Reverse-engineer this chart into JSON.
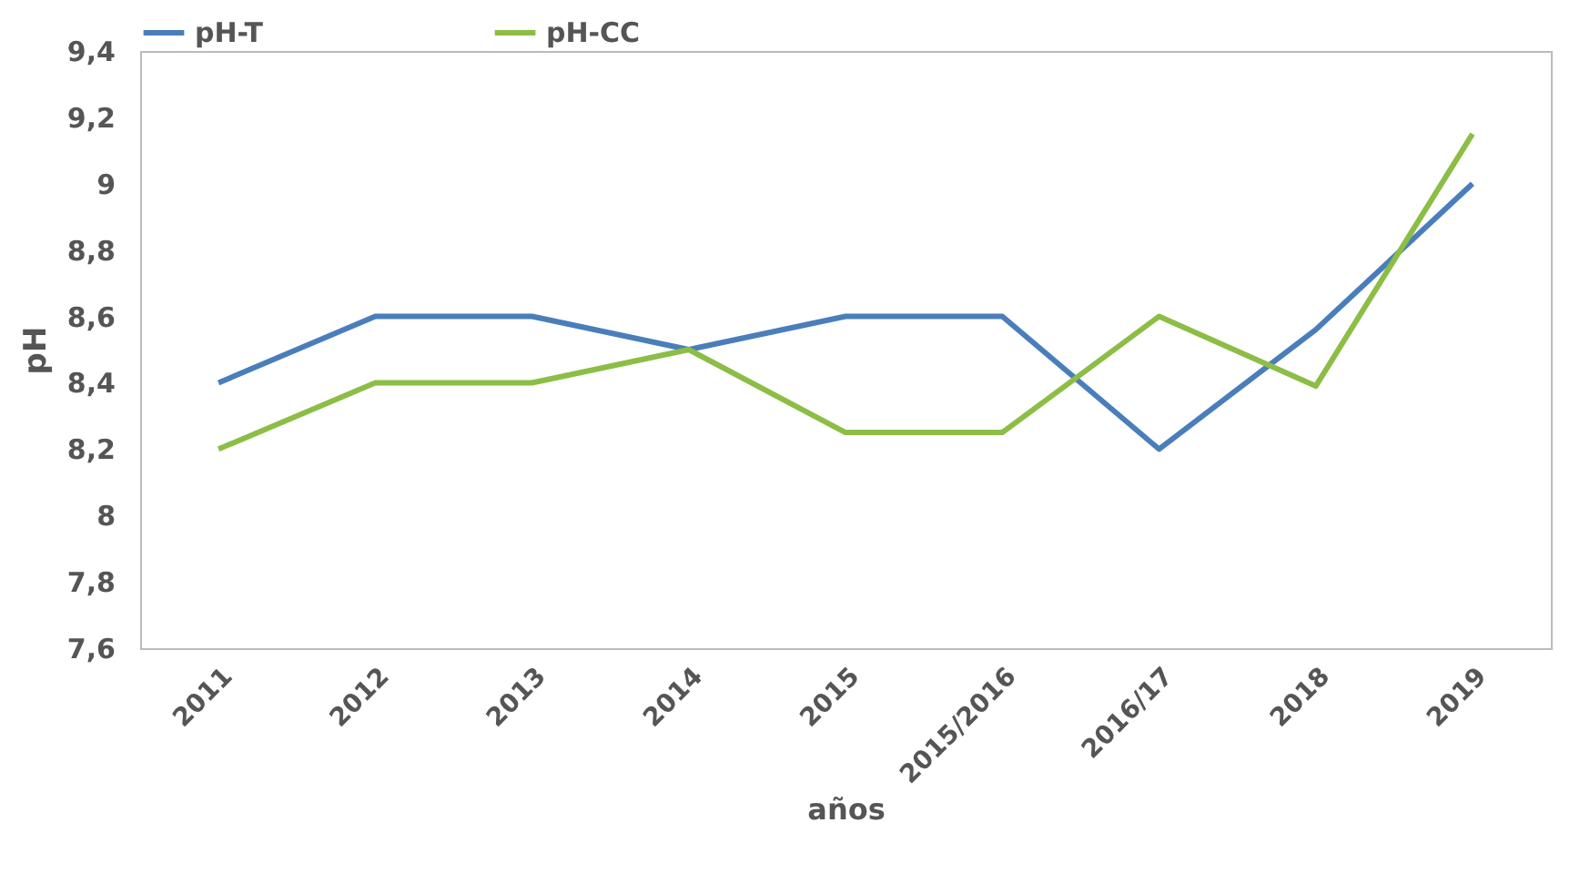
{
  "chart_data": {
    "type": "line",
    "xlabel": "años",
    "ylabel": "pH",
    "categories": [
      "2011",
      "2012",
      "2013",
      "2014",
      "2015",
      "2015/2016",
      "2016/17",
      "2018",
      "2019"
    ],
    "series": [
      {
        "name": "pH-T",
        "color": "#4a7ebb",
        "values": [
          8.4,
          8.6,
          8.6,
          8.5,
          8.6,
          8.6,
          8.2,
          8.56,
          9.0
        ]
      },
      {
        "name": "pH-CC",
        "color": "#8cbd45",
        "values": [
          8.2,
          8.4,
          8.4,
          8.5,
          8.25,
          8.25,
          8.6,
          8.39,
          9.15
        ]
      }
    ],
    "ylim": [
      7.6,
      9.4
    ],
    "yticks": [
      {
        "value": 7.6,
        "label": "7,6"
      },
      {
        "value": 7.8,
        "label": "7,8"
      },
      {
        "value": 8,
        "label": "8"
      },
      {
        "value": 8.2,
        "label": "8,2"
      },
      {
        "value": 8.4,
        "label": "8,4"
      },
      {
        "value": 8.6,
        "label": "8,6"
      },
      {
        "value": 8.8,
        "label": "8,8"
      },
      {
        "value": 9,
        "label": "9"
      },
      {
        "value": 9.2,
        "label": "9,2"
      },
      {
        "value": 9.4,
        "label": "9,4"
      }
    ],
    "grid": false,
    "legend": "top",
    "marker": "none",
    "line_style": "solid"
  }
}
